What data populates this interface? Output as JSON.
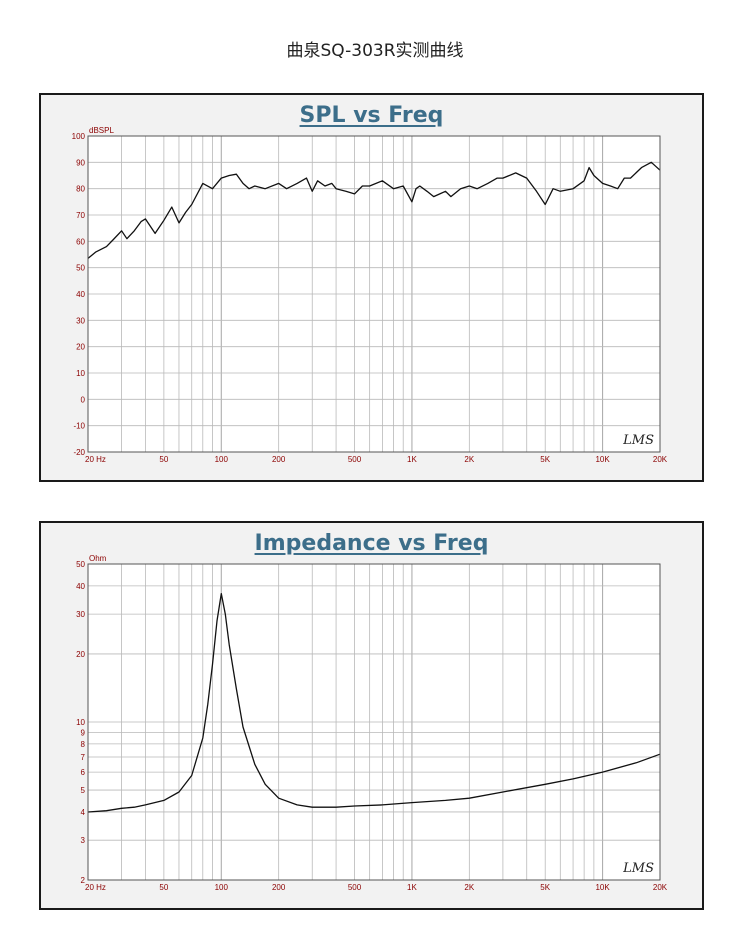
{
  "page_title": "曲泉SQ-303R实测曲线",
  "charts": [
    {
      "id": "spl",
      "title": "SPL vs Freq",
      "y_unit": "dBSPL",
      "y_ticks": [
        "100",
        "90",
        "80",
        "70",
        "60",
        "50",
        "40",
        "30",
        "20",
        "10",
        "0",
        "-10",
        "-20"
      ],
      "x_ticks": [
        "20 Hz",
        "50",
        "100",
        "200",
        "500",
        "1K",
        "2K",
        "5K",
        "10K",
        "20K"
      ],
      "watermark": "LMS"
    },
    {
      "id": "impedance",
      "title": "Impedance vs Freq",
      "y_unit": "Ohm",
      "y_ticks": [
        "50",
        "40",
        "30",
        "20",
        "10",
        "9",
        "8",
        "7",
        "6",
        "5",
        "4",
        "3",
        "2"
      ],
      "x_ticks": [
        "20 Hz",
        "50",
        "100",
        "200",
        "500",
        "1K",
        "2K",
        "5K",
        "10K",
        "20K"
      ],
      "watermark": "LMS"
    }
  ],
  "chart_data": [
    {
      "type": "line",
      "title": "SPL vs Freq",
      "ylabel": "dBSPL",
      "xlabel": "",
      "x_scale": "log",
      "xlim": [
        20,
        20000
      ],
      "ylim": [
        -20,
        100
      ],
      "grid": true,
      "series": [
        {
          "x": [
            20,
            22,
            25,
            27,
            30,
            32,
            35,
            38,
            40,
            45,
            50,
            55,
            60,
            65,
            70,
            80,
            90,
            100,
            110,
            120,
            130,
            140,
            150,
            170,
            200,
            220,
            250,
            280,
            300,
            320,
            350,
            380,
            400,
            450,
            500,
            550,
            600,
            700,
            800,
            900,
            1000,
            1050,
            1100,
            1200,
            1300,
            1400,
            1500,
            1600,
            1800,
            2000,
            2200,
            2500,
            2800,
            3000,
            3500,
            4000,
            4500,
            5000,
            5500,
            6000,
            7000,
            8000,
            8500,
            9000,
            10000,
            11000,
            12000,
            13000,
            14000,
            16000,
            18000,
            20000
          ],
          "y": [
            53.5,
            56,
            58,
            60.5,
            64,
            61,
            64,
            67.5,
            68.5,
            63,
            68,
            73,
            67,
            71,
            74,
            82,
            80,
            84,
            85,
            85.5,
            82,
            80,
            81,
            80,
            82,
            80,
            82,
            84,
            79,
            83,
            81,
            82,
            80,
            79,
            78,
            81,
            81,
            83,
            80,
            81,
            75,
            80,
            81,
            79,
            77,
            78,
            79,
            77,
            80,
            81,
            80,
            82,
            84,
            84,
            86,
            84,
            79,
            74,
            80,
            79,
            80,
            83,
            88,
            85,
            82,
            81,
            80,
            84,
            84,
            88,
            90,
            87
          ]
        }
      ]
    },
    {
      "type": "line",
      "title": "Impedance vs Freq",
      "ylabel": "Ohm",
      "xlabel": "",
      "x_scale": "log",
      "y_scale": "log",
      "xlim": [
        20,
        20000
      ],
      "ylim": [
        2,
        50
      ],
      "grid": true,
      "series": [
        {
          "x": [
            20,
            25,
            30,
            35,
            40,
            50,
            60,
            70,
            80,
            85,
            90,
            95,
            100,
            105,
            110,
            120,
            130,
            150,
            170,
            200,
            250,
            300,
            400,
            500,
            700,
            1000,
            1500,
            2000,
            3000,
            5000,
            7000,
            10000,
            15000,
            20000
          ],
          "y": [
            4.0,
            4.05,
            4.15,
            4.2,
            4.3,
            4.5,
            4.9,
            5.8,
            8.5,
            12,
            18,
            28,
            37,
            30,
            22,
            14,
            9.5,
            6.5,
            5.3,
            4.6,
            4.3,
            4.2,
            4.2,
            4.25,
            4.3,
            4.4,
            4.5,
            4.6,
            4.9,
            5.3,
            5.6,
            6.0,
            6.6,
            7.2
          ]
        }
      ]
    }
  ]
}
